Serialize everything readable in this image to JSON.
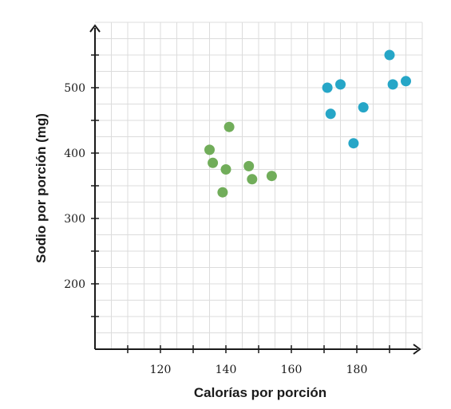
{
  "chart_data": {
    "type": "scatter",
    "xlabel": "Calorías por porción",
    "ylabel": "Sodio por porción (mg)",
    "xlim": [
      100,
      200
    ],
    "ylim": [
      100,
      600
    ],
    "x_ticks": [
      110,
      120,
      130,
      140,
      150,
      160,
      170,
      180,
      190
    ],
    "x_tick_labels": [
      {
        "value": 120,
        "label": "120"
      },
      {
        "value": 140,
        "label": "140"
      },
      {
        "value": 160,
        "label": "160"
      },
      {
        "value": 180,
        "label": "180"
      }
    ],
    "y_ticks": [
      150,
      200,
      250,
      300,
      350,
      400,
      450,
      500,
      550
    ],
    "y_tick_labels": [
      {
        "value": 200,
        "label": "200"
      },
      {
        "value": 300,
        "label": "300"
      },
      {
        "value": 400,
        "label": "400"
      },
      {
        "value": 500,
        "label": "500"
      }
    ],
    "grid": true,
    "series": [
      {
        "color": "#71ad5a",
        "points": [
          {
            "x": 135,
            "y": 405
          },
          {
            "x": 136,
            "y": 385
          },
          {
            "x": 139,
            "y": 340
          },
          {
            "x": 140,
            "y": 375
          },
          {
            "x": 141,
            "y": 440
          },
          {
            "x": 147,
            "y": 380
          },
          {
            "x": 148,
            "y": 360
          },
          {
            "x": 154,
            "y": 365
          }
        ]
      },
      {
        "color": "#26a6c7",
        "points": [
          {
            "x": 171,
            "y": 500
          },
          {
            "x": 172,
            "y": 460
          },
          {
            "x": 175,
            "y": 505
          },
          {
            "x": 179,
            "y": 415
          },
          {
            "x": 182,
            "y": 470
          },
          {
            "x": 190,
            "y": 550
          },
          {
            "x": 191,
            "y": 505
          },
          {
            "x": 195,
            "y": 510
          }
        ]
      }
    ]
  }
}
